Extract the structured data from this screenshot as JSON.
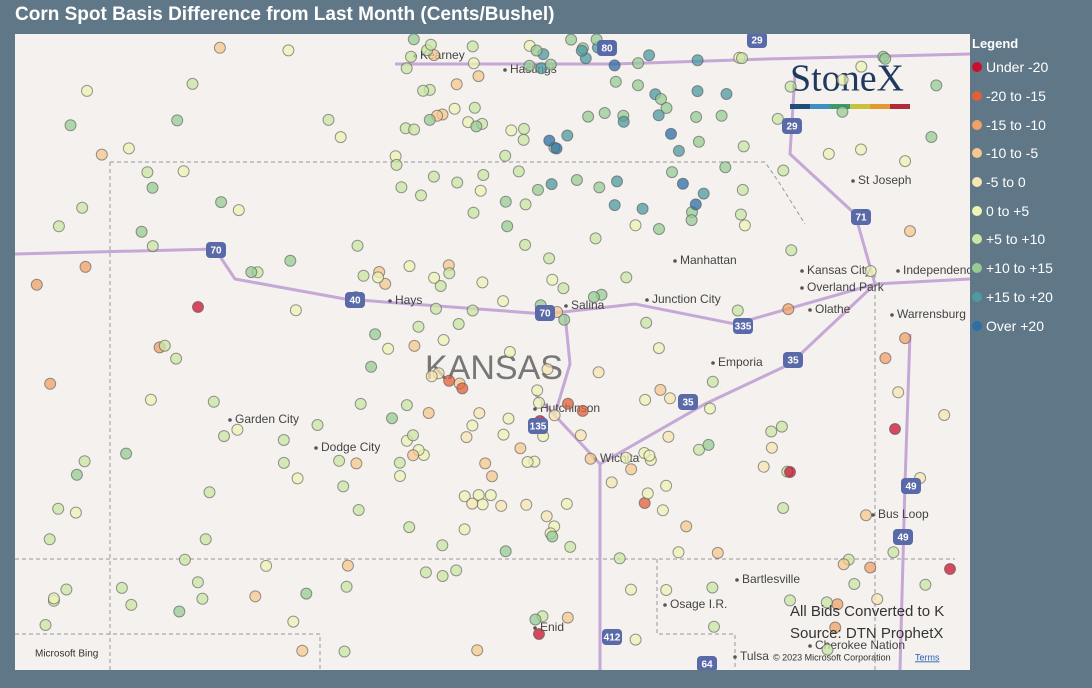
{
  "header": {
    "title": "Corn Spot Basis Difference from Last Month (Cents/Bushel)"
  },
  "legend": {
    "title": "Legend",
    "items": [
      {
        "label": "Under -20",
        "color": "#c8102e"
      },
      {
        "label": "-20 to -15",
        "color": "#e0603a"
      },
      {
        "label": "-15 to -10",
        "color": "#f0a068"
      },
      {
        "label": "-10 to -5",
        "color": "#f6c88e"
      },
      {
        "label": "-5 to 0",
        "color": "#f7e6b2"
      },
      {
        "label": "0 to +5",
        "color": "#eef3b6"
      },
      {
        "label": "+5 to +10",
        "color": "#cbe5a4"
      },
      {
        "label": "+10 to +15",
        "color": "#98cb94"
      },
      {
        "label": "+15 to +20",
        "color": "#4e9aa0"
      },
      {
        "label": "Over +20",
        "color": "#2e6ea6"
      }
    ]
  },
  "map": {
    "state_label": "KANSAS",
    "places": [
      "Kearney",
      "Hastings",
      "St Joseph",
      "Manhattan",
      "Kansas City",
      "Independence",
      "Overland Park",
      "Olathe",
      "Junction City",
      "Salina",
      "Hays",
      "Garden City",
      "Dodge City",
      "Hutchinson",
      "Wichita",
      "Emporia",
      "Warrensburg",
      "Bus Loop",
      "Bartlesville",
      "Osage I.R.",
      "Enid",
      "Tulsa",
      "Cherokee Nation"
    ],
    "shields": [
      "80",
      "29",
      "29",
      "70",
      "70",
      "40",
      "335",
      "35",
      "35",
      "135",
      "49",
      "49",
      "412",
      "64",
      "71"
    ],
    "logo": "StoneX",
    "notes": [
      "All Bids Converted to K",
      "Source: DTN ProphetX"
    ],
    "bing": "Microsoft Bing",
    "copyright": "© 2023 Microsoft Corporation",
    "terms": "Terms"
  }
}
